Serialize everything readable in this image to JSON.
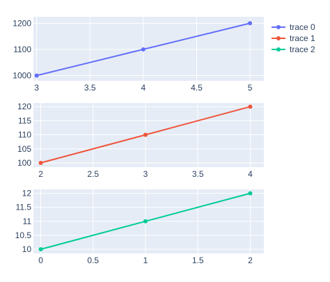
{
  "chart_data": [
    {
      "type": "line",
      "x": [
        3,
        4,
        5
      ],
      "series": [
        {
          "name": "trace 0",
          "values": [
            1000,
            1100,
            1200
          ],
          "color": "#636efa"
        }
      ],
      "xticks": [
        3,
        3.5,
        4,
        4.5,
        5
      ],
      "yticks": [
        1000,
        1100,
        1200
      ],
      "xlim": [
        2.97,
        5.13
      ],
      "ylim": [
        980,
        1225
      ],
      "grid": true,
      "title": "",
      "xlabel": "",
      "ylabel": ""
    },
    {
      "type": "line",
      "x": [
        2,
        3,
        4
      ],
      "series": [
        {
          "name": "trace 1",
          "values": [
            100,
            110,
            120
          ],
          "color": "#ef553b"
        }
      ],
      "xticks": [
        2,
        2.5,
        3,
        3.5,
        4
      ],
      "yticks": [
        100,
        105,
        110,
        115,
        120
      ],
      "xlim": [
        1.93,
        4.13
      ],
      "ylim": [
        98.5,
        121.3
      ],
      "grid": true,
      "title": "",
      "xlabel": "",
      "ylabel": ""
    },
    {
      "type": "line",
      "x": [
        0,
        1,
        2
      ],
      "series": [
        {
          "name": "trace 2",
          "values": [
            10,
            11,
            12
          ],
          "color": "#00cc96"
        }
      ],
      "xticks": [
        0,
        0.5,
        1,
        1.5,
        2
      ],
      "yticks": [
        10,
        10.5,
        11,
        11.5,
        12
      ],
      "xlim": [
        -0.07,
        2.13
      ],
      "ylim": [
        9.85,
        12.14
      ],
      "grid": true,
      "title": "",
      "xlabel": "",
      "ylabel": ""
    }
  ],
  "legend": {
    "placement": "top-right",
    "items": [
      {
        "label": "trace 0",
        "color": "#636efa"
      },
      {
        "label": "trace 1",
        "color": "#ef553b"
      },
      {
        "label": "trace 2",
        "color": "#00cc96"
      }
    ]
  },
  "colors": {
    "plot_bg": "#e5ecf6",
    "grid": "#ffffff",
    "text": "#2a3f5f"
  }
}
